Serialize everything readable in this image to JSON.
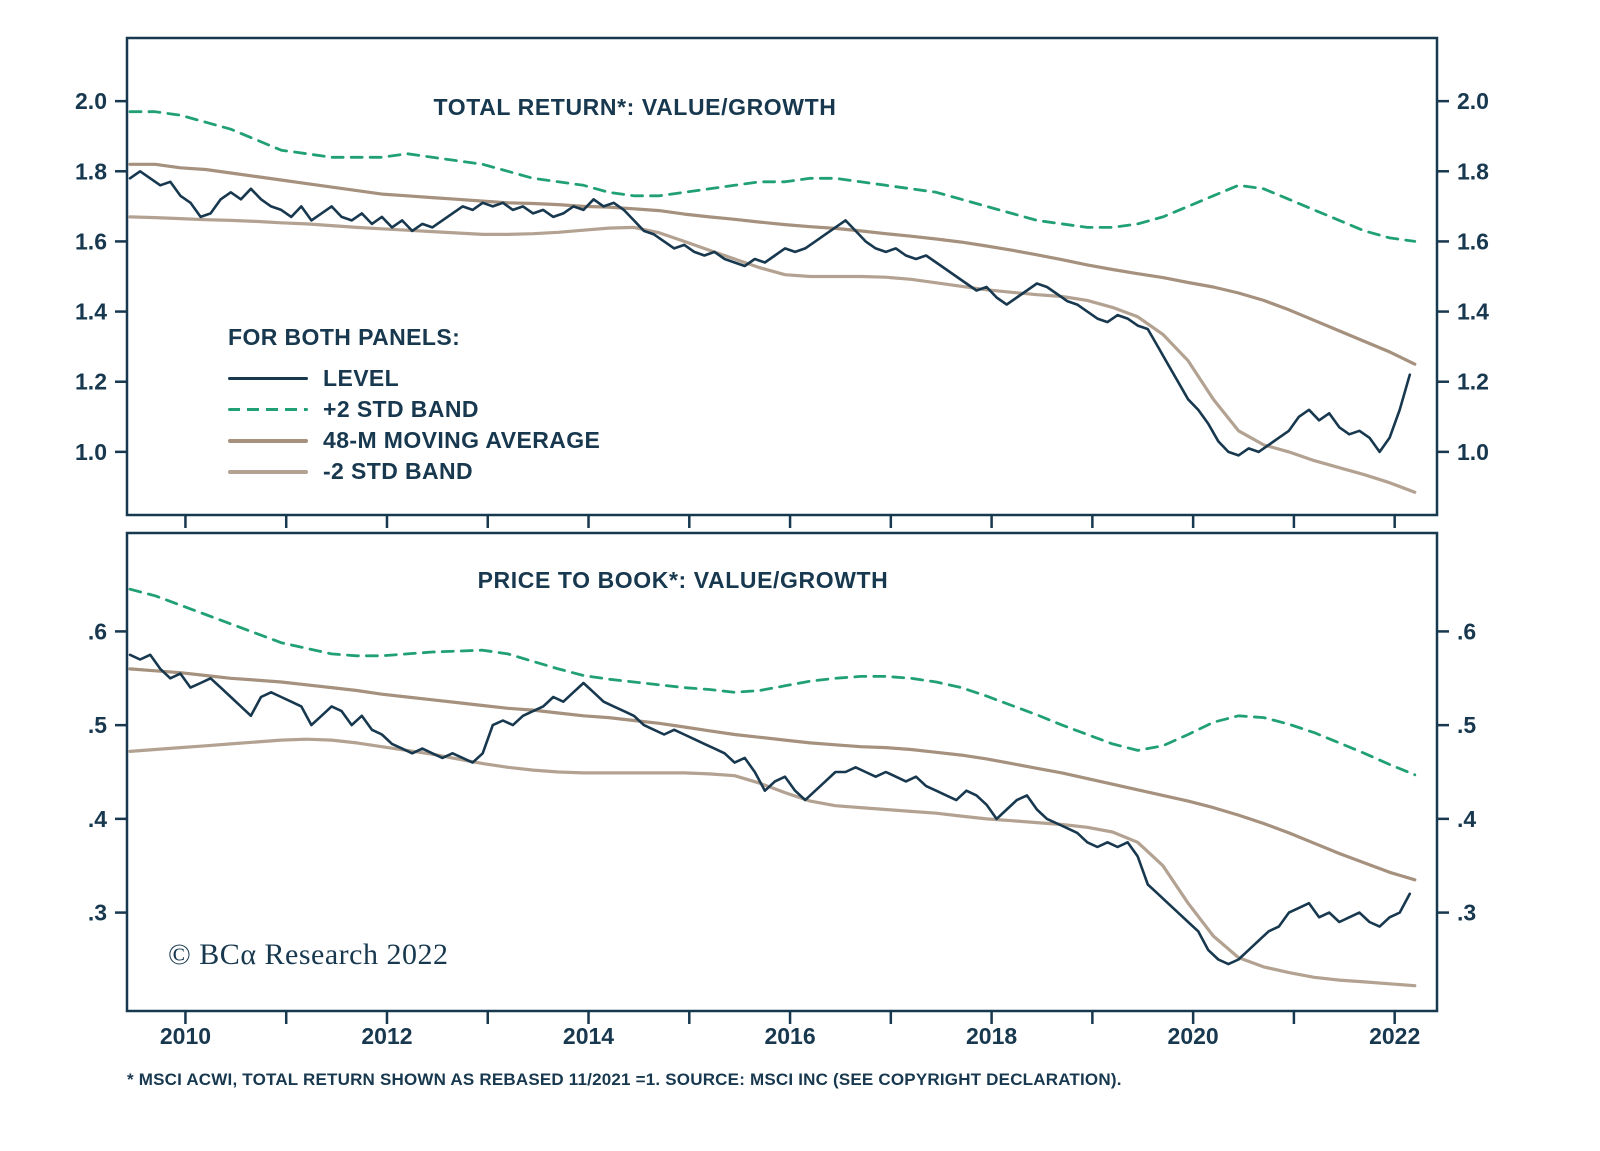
{
  "page": {
    "background": "#ffffff"
  },
  "colors": {
    "navy": "#17384e",
    "green": "#21a173",
    "tan": "#a5917e",
    "tan_light": "#b3a291"
  },
  "legend": {
    "title": "FOR BOTH PANELS:",
    "items": [
      {
        "label": "LEVEL",
        "color": "navy",
        "dashed": false,
        "thick": false
      },
      {
        "label": "+2 STD BAND",
        "color": "green",
        "dashed": true,
        "thick": false
      },
      {
        "label": "48-M MOVING AVERAGE",
        "color": "tan",
        "dashed": false,
        "thick": true
      },
      {
        "label": "-2 STD BAND",
        "color": "tan_light",
        "dashed": false,
        "thick": true
      }
    ]
  },
  "copyright": "© BCα Research 2022",
  "footnote": "* MSCI ACWI, TOTAL RETURN SHOWN AS REBASED 11/2021 =1. SOURCE: MSCI INC (SEE COPYRIGHT DECLARATION).",
  "x_axis": {
    "labels": [
      {
        "v": 2010,
        "label": "2010"
      },
      {
        "v": 2012,
        "label": "2012"
      },
      {
        "v": 2014,
        "label": "2014"
      },
      {
        "v": 2016,
        "label": "2016"
      },
      {
        "v": 2018,
        "label": "2018"
      },
      {
        "v": 2020,
        "label": "2020"
      },
      {
        "v": 2022,
        "label": "2022"
      }
    ]
  },
  "chart_data": [
    {
      "type": "line",
      "title": "TOTAL RETURN*: VALUE/GROWTH",
      "xlim": [
        2009.42,
        2022.42
      ],
      "ylim": [
        0.82,
        2.18
      ],
      "grid": false,
      "yticks": [
        {
          "v": 2.0,
          "label": "2.0"
        },
        {
          "v": 1.8,
          "label": "1.8"
        },
        {
          "v": 1.6,
          "label": "1.6"
        },
        {
          "v": 1.4,
          "label": "1.4"
        },
        {
          "v": 1.2,
          "label": "1.2"
        },
        {
          "v": 1.0,
          "label": "1.0"
        }
      ],
      "xticks": [
        2010,
        2011,
        2012,
        2013,
        2014,
        2015,
        2016,
        2017,
        2018,
        2019,
        2020,
        2021,
        2022
      ],
      "series": [
        {
          "name": "48-M MOVING AVERAGE",
          "color": "tan",
          "width": 3.2,
          "dash": null,
          "x0": 2009.45,
          "dx": 0.25,
          "y": [
            1.82,
            1.82,
            1.81,
            1.805,
            1.795,
            1.785,
            1.775,
            1.765,
            1.755,
            1.745,
            1.735,
            1.73,
            1.725,
            1.72,
            1.715,
            1.71,
            1.708,
            1.705,
            1.7,
            1.698,
            1.693,
            1.688,
            1.678,
            1.67,
            1.663,
            1.655,
            1.648,
            1.642,
            1.637,
            1.63,
            1.622,
            1.615,
            1.607,
            1.598,
            1.587,
            1.575,
            1.562,
            1.548,
            1.533,
            1.52,
            1.508,
            1.497,
            1.483,
            1.47,
            1.453,
            1.432,
            1.405,
            1.375,
            1.345,
            1.315,
            1.285,
            1.25
          ]
        },
        {
          "name": "-2 STD BAND",
          "color": "tan_light",
          "width": 3.2,
          "dash": null,
          "x0": 2009.45,
          "dx": 0.25,
          "y": [
            1.67,
            1.668,
            1.665,
            1.662,
            1.66,
            1.657,
            1.653,
            1.65,
            1.645,
            1.64,
            1.636,
            1.632,
            1.628,
            1.624,
            1.62,
            1.62,
            1.622,
            1.626,
            1.632,
            1.638,
            1.64,
            1.625,
            1.6,
            1.575,
            1.55,
            1.525,
            1.505,
            1.5,
            1.5,
            1.5,
            1.498,
            1.492,
            1.482,
            1.472,
            1.462,
            1.455,
            1.448,
            1.443,
            1.432,
            1.412,
            1.385,
            1.335,
            1.26,
            1.15,
            1.06,
            1.02,
            1.0,
            0.975,
            0.955,
            0.935,
            0.912,
            0.885
          ]
        },
        {
          "name": "+2 STD BAND",
          "color": "green",
          "width": 2.8,
          "dash": "11 8",
          "x0": 2009.45,
          "dx": 0.25,
          "y": [
            1.97,
            1.97,
            1.96,
            1.94,
            1.92,
            1.89,
            1.86,
            1.85,
            1.84,
            1.84,
            1.84,
            1.85,
            1.84,
            1.83,
            1.82,
            1.8,
            1.78,
            1.77,
            1.76,
            1.74,
            1.73,
            1.73,
            1.74,
            1.75,
            1.76,
            1.77,
            1.77,
            1.78,
            1.78,
            1.77,
            1.76,
            1.75,
            1.74,
            1.72,
            1.7,
            1.68,
            1.66,
            1.65,
            1.64,
            1.64,
            1.65,
            1.67,
            1.7,
            1.73,
            1.76,
            1.75,
            1.72,
            1.69,
            1.66,
            1.63,
            1.61,
            1.6
          ]
        },
        {
          "name": "LEVEL",
          "color": "navy",
          "width": 2.6,
          "dash": null,
          "x0": 2009.45,
          "dx": 0.1,
          "y": [
            1.78,
            1.8,
            1.78,
            1.76,
            1.77,
            1.73,
            1.71,
            1.67,
            1.68,
            1.72,
            1.74,
            1.72,
            1.75,
            1.72,
            1.7,
            1.69,
            1.67,
            1.7,
            1.66,
            1.68,
            1.7,
            1.67,
            1.66,
            1.68,
            1.65,
            1.67,
            1.64,
            1.66,
            1.63,
            1.65,
            1.64,
            1.66,
            1.68,
            1.7,
            1.69,
            1.71,
            1.7,
            1.71,
            1.69,
            1.7,
            1.68,
            1.69,
            1.67,
            1.68,
            1.7,
            1.69,
            1.72,
            1.7,
            1.71,
            1.69,
            1.66,
            1.63,
            1.62,
            1.6,
            1.58,
            1.59,
            1.57,
            1.56,
            1.57,
            1.55,
            1.54,
            1.53,
            1.55,
            1.54,
            1.56,
            1.58,
            1.57,
            1.58,
            1.6,
            1.62,
            1.64,
            1.66,
            1.63,
            1.6,
            1.58,
            1.57,
            1.58,
            1.56,
            1.55,
            1.56,
            1.54,
            1.52,
            1.5,
            1.48,
            1.46,
            1.47,
            1.44,
            1.42,
            1.44,
            1.46,
            1.48,
            1.47,
            1.45,
            1.43,
            1.42,
            1.4,
            1.38,
            1.37,
            1.39,
            1.38,
            1.36,
            1.35,
            1.3,
            1.25,
            1.2,
            1.15,
            1.12,
            1.08,
            1.03,
            1.0,
            0.99,
            1.01,
            1.0,
            1.02,
            1.04,
            1.06,
            1.1,
            1.12,
            1.09,
            1.11,
            1.07,
            1.05,
            1.06,
            1.04,
            1.0,
            1.04,
            1.12,
            1.22
          ]
        }
      ]
    },
    {
      "type": "line",
      "title": "PRICE TO BOOK*: VALUE/GROWTH",
      "xlim": [
        2009.42,
        2022.42
      ],
      "ylim": [
        0.195,
        0.705
      ],
      "grid": false,
      "yticks": [
        {
          "v": 0.6,
          "label": ".6"
        },
        {
          "v": 0.5,
          "label": ".5"
        },
        {
          "v": 0.4,
          "label": ".4"
        },
        {
          "v": 0.3,
          "label": ".3"
        }
      ],
      "xticks": [
        2010,
        2011,
        2012,
        2013,
        2014,
        2015,
        2016,
        2017,
        2018,
        2019,
        2020,
        2021,
        2022
      ],
      "series": [
        {
          "name": "48-M MOVING AVERAGE",
          "color": "tan",
          "width": 3.2,
          "dash": null,
          "x0": 2009.45,
          "dx": 0.25,
          "y": [
            0.56,
            0.558,
            0.556,
            0.553,
            0.55,
            0.548,
            0.546,
            0.543,
            0.54,
            0.537,
            0.533,
            0.53,
            0.527,
            0.524,
            0.521,
            0.518,
            0.516,
            0.513,
            0.51,
            0.508,
            0.505,
            0.502,
            0.498,
            0.494,
            0.49,
            0.487,
            0.484,
            0.481,
            0.479,
            0.477,
            0.476,
            0.474,
            0.471,
            0.468,
            0.464,
            0.459,
            0.454,
            0.449,
            0.443,
            0.437,
            0.431,
            0.425,
            0.419,
            0.412,
            0.404,
            0.395,
            0.385,
            0.374,
            0.363,
            0.353,
            0.343,
            0.335
          ]
        },
        {
          "name": "-2 STD BAND",
          "color": "tan_light",
          "width": 3.2,
          "dash": null,
          "x0": 2009.45,
          "dx": 0.25,
          "y": [
            0.472,
            0.474,
            0.476,
            0.478,
            0.48,
            0.482,
            0.484,
            0.485,
            0.484,
            0.481,
            0.477,
            0.473,
            0.469,
            0.464,
            0.459,
            0.455,
            0.452,
            0.45,
            0.449,
            0.449,
            0.449,
            0.449,
            0.449,
            0.448,
            0.446,
            0.438,
            0.428,
            0.419,
            0.414,
            0.412,
            0.41,
            0.408,
            0.406,
            0.403,
            0.4,
            0.398,
            0.396,
            0.394,
            0.391,
            0.386,
            0.375,
            0.35,
            0.31,
            0.275,
            0.252,
            0.242,
            0.236,
            0.231,
            0.228,
            0.226,
            0.224,
            0.222
          ]
        },
        {
          "name": "+2 STD BAND",
          "color": "green",
          "width": 2.8,
          "dash": "11 8",
          "x0": 2009.45,
          "dx": 0.25,
          "y": [
            0.645,
            0.638,
            0.628,
            0.618,
            0.608,
            0.598,
            0.588,
            0.582,
            0.576,
            0.574,
            0.574,
            0.576,
            0.578,
            0.579,
            0.58,
            0.576,
            0.568,
            0.56,
            0.553,
            0.549,
            0.546,
            0.543,
            0.54,
            0.538,
            0.535,
            0.537,
            0.542,
            0.547,
            0.55,
            0.552,
            0.552,
            0.55,
            0.546,
            0.54,
            0.531,
            0.521,
            0.511,
            0.5,
            0.49,
            0.48,
            0.473,
            0.478,
            0.49,
            0.503,
            0.51,
            0.508,
            0.501,
            0.492,
            0.481,
            0.47,
            0.458,
            0.447
          ]
        },
        {
          "name": "LEVEL",
          "color": "navy",
          "width": 2.6,
          "dash": null,
          "x0": 2009.45,
          "dx": 0.1,
          "y": [
            0.575,
            0.57,
            0.575,
            0.56,
            0.55,
            0.555,
            0.54,
            0.545,
            0.55,
            0.54,
            0.53,
            0.52,
            0.51,
            0.53,
            0.535,
            0.53,
            0.525,
            0.52,
            0.5,
            0.51,
            0.52,
            0.515,
            0.5,
            0.51,
            0.495,
            0.49,
            0.48,
            0.475,
            0.47,
            0.475,
            0.47,
            0.465,
            0.47,
            0.465,
            0.46,
            0.47,
            0.5,
            0.505,
            0.5,
            0.51,
            0.515,
            0.52,
            0.53,
            0.525,
            0.535,
            0.545,
            0.535,
            0.525,
            0.52,
            0.515,
            0.51,
            0.5,
            0.495,
            0.49,
            0.495,
            0.49,
            0.485,
            0.48,
            0.475,
            0.47,
            0.46,
            0.465,
            0.45,
            0.43,
            0.44,
            0.445,
            0.43,
            0.42,
            0.43,
            0.44,
            0.45,
            0.45,
            0.455,
            0.45,
            0.445,
            0.45,
            0.445,
            0.44,
            0.445,
            0.435,
            0.43,
            0.425,
            0.42,
            0.43,
            0.425,
            0.415,
            0.4,
            0.41,
            0.42,
            0.425,
            0.41,
            0.4,
            0.395,
            0.39,
            0.385,
            0.375,
            0.37,
            0.375,
            0.37,
            0.375,
            0.36,
            0.33,
            0.32,
            0.31,
            0.3,
            0.29,
            0.28,
            0.26,
            0.25,
            0.245,
            0.25,
            0.26,
            0.27,
            0.28,
            0.285,
            0.3,
            0.305,
            0.31,
            0.295,
            0.3,
            0.29,
            0.295,
            0.3,
            0.29,
            0.285,
            0.295,
            0.3,
            0.32
          ]
        }
      ]
    }
  ]
}
